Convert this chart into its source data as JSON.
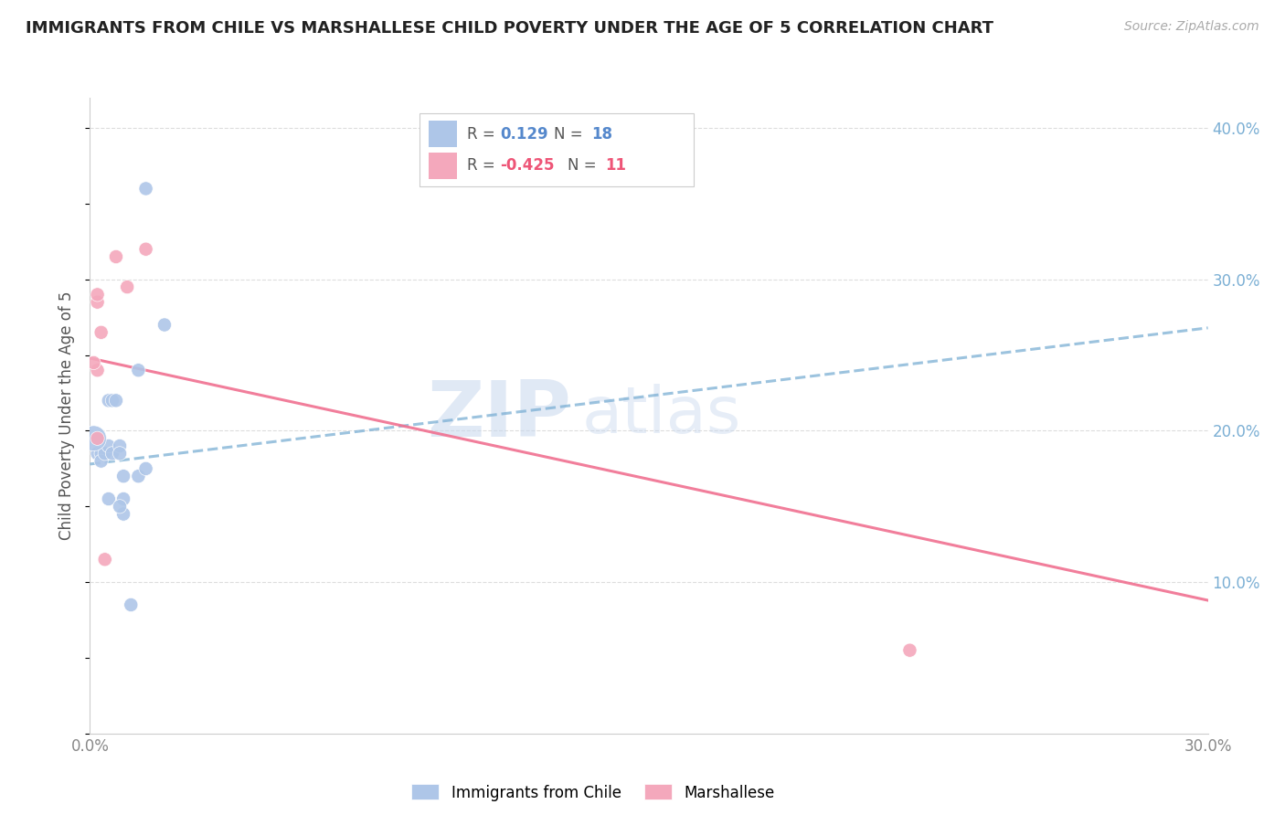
{
  "title": "IMMIGRANTS FROM CHILE VS MARSHALLESE CHILD POVERTY UNDER THE AGE OF 5 CORRELATION CHART",
  "source": "Source: ZipAtlas.com",
  "ylabel": "Child Poverty Under the Age of 5",
  "xlim": [
    0.0,
    0.3
  ],
  "ylim": [
    0.0,
    0.42
  ],
  "x_ticks": [
    0.0,
    0.05,
    0.1,
    0.15,
    0.2,
    0.25,
    0.3
  ],
  "y_ticks_right": [
    0.1,
    0.2,
    0.3,
    0.4
  ],
  "y_tick_labels_right": [
    "10.0%",
    "20.0%",
    "30.0%",
    "40.0%"
  ],
  "watermark": "ZIPatlas",
  "chile_color": "#aec6e8",
  "marshallese_color": "#f4a8bc",
  "chile_line_color": "#7bafd4",
  "marshallese_line_color": "#f07090",
  "chile_points": [
    [
      0.002,
      0.185
    ],
    [
      0.003,
      0.185
    ],
    [
      0.003,
      0.18
    ],
    [
      0.004,
      0.185
    ],
    [
      0.005,
      0.19
    ],
    [
      0.005,
      0.155
    ],
    [
      0.005,
      0.22
    ],
    [
      0.006,
      0.22
    ],
    [
      0.006,
      0.185
    ],
    [
      0.007,
      0.22
    ],
    [
      0.008,
      0.19
    ],
    [
      0.008,
      0.185
    ],
    [
      0.009,
      0.17
    ],
    [
      0.009,
      0.155
    ],
    [
      0.009,
      0.145
    ],
    [
      0.011,
      0.085
    ],
    [
      0.013,
      0.24
    ],
    [
      0.013,
      0.17
    ],
    [
      0.001,
      0.195
    ],
    [
      0.02,
      0.27
    ],
    [
      0.015,
      0.175
    ],
    [
      0.015,
      0.36
    ],
    [
      0.008,
      0.15
    ]
  ],
  "chile_sizes": [
    120,
    120,
    120,
    120,
    120,
    120,
    120,
    120,
    120,
    120,
    120,
    120,
    120,
    120,
    120,
    120,
    120,
    120,
    400,
    120,
    120,
    120,
    120
  ],
  "marshallese_points": [
    [
      0.002,
      0.195
    ],
    [
      0.002,
      0.24
    ],
    [
      0.002,
      0.285
    ],
    [
      0.002,
      0.29
    ],
    [
      0.003,
      0.265
    ],
    [
      0.004,
      0.115
    ],
    [
      0.007,
      0.315
    ],
    [
      0.01,
      0.295
    ],
    [
      0.015,
      0.32
    ],
    [
      0.22,
      0.055
    ],
    [
      0.001,
      0.245
    ]
  ],
  "marshallese_sizes": [
    120,
    120,
    120,
    120,
    120,
    120,
    120,
    120,
    120,
    120,
    120
  ],
  "chile_trend_x": [
    0.0,
    0.3
  ],
  "chile_trend_y": [
    0.178,
    0.268
  ],
  "marshallese_trend_x": [
    0.0,
    0.3
  ],
  "marshallese_trend_y": [
    0.248,
    0.088
  ]
}
